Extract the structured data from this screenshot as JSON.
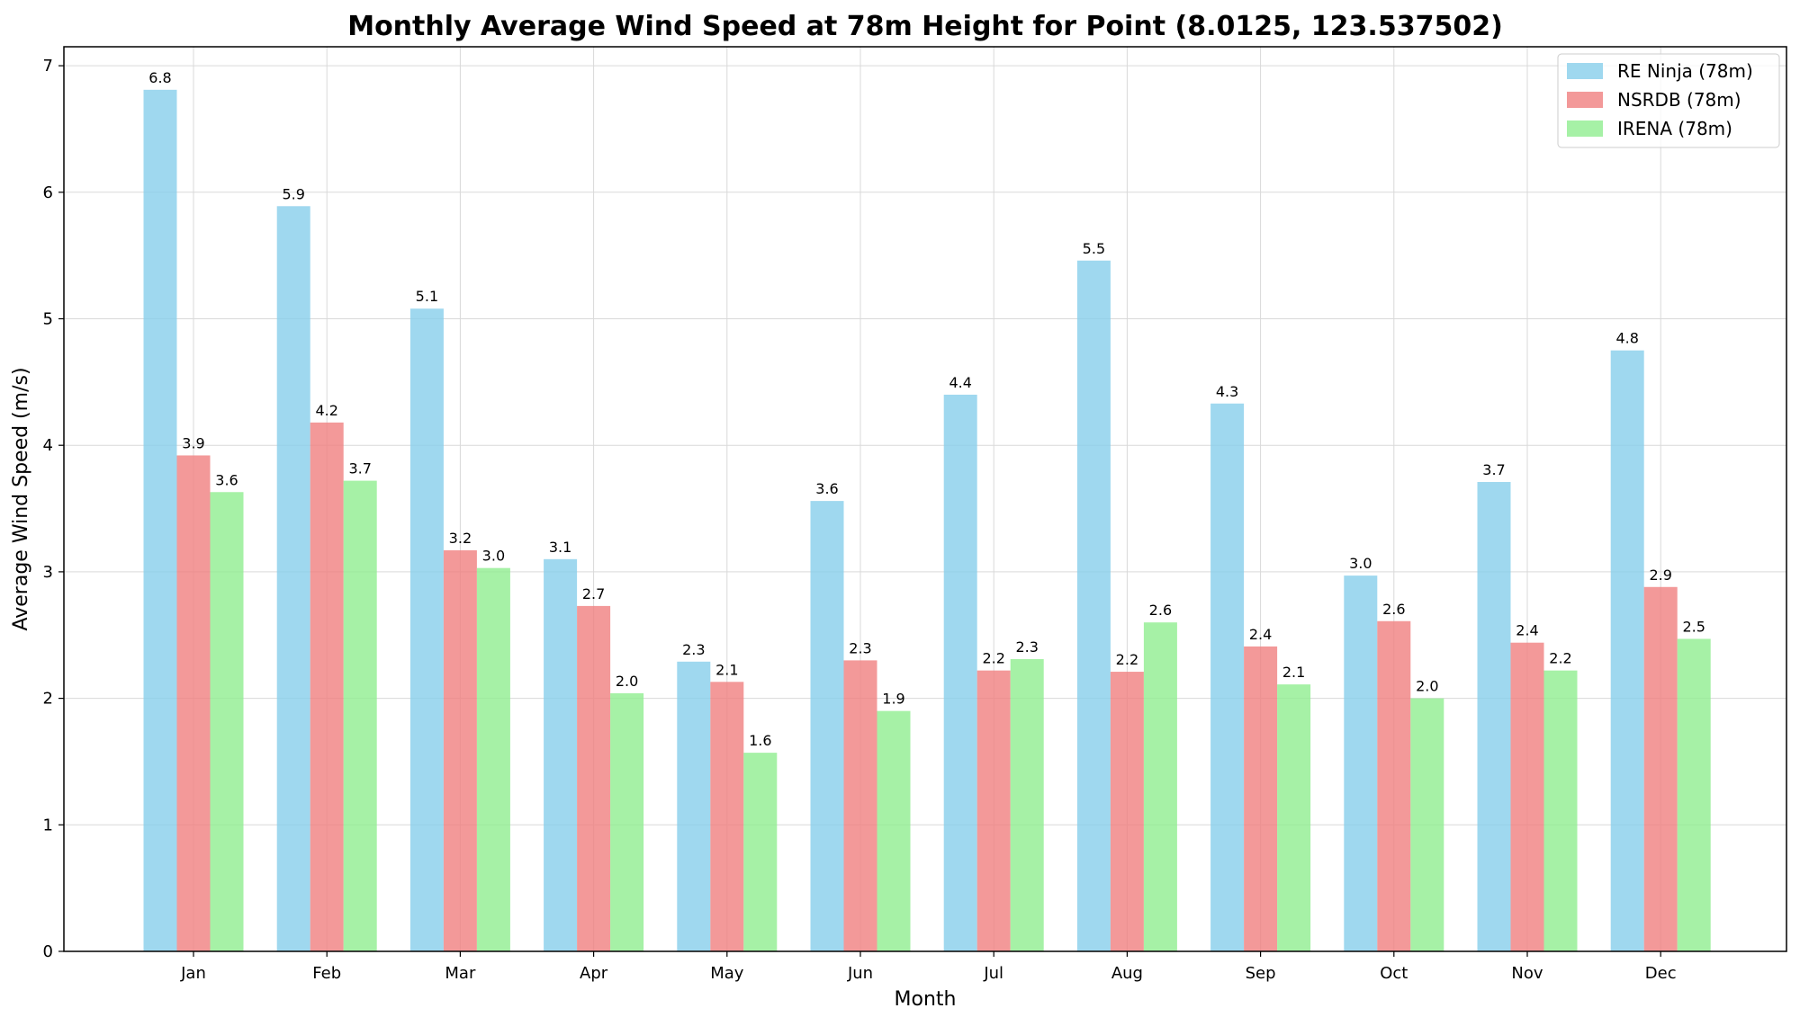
{
  "chart_data": {
    "type": "bar",
    "title": "Monthly Average Wind Speed at 78m Height for Point (8.0125, 123.537502)",
    "xlabel": "Month",
    "ylabel": "Average Wind Speed (m/s)",
    "ylim": [
      0,
      7.15
    ],
    "yticks": [
      "0",
      "1",
      "2",
      "3",
      "4",
      "5",
      "6",
      "7"
    ],
    "grid": true,
    "legend_position": "top-right",
    "categories": [
      "Jan",
      "Feb",
      "Mar",
      "Apr",
      "May",
      "Jun",
      "Jul",
      "Aug",
      "Sep",
      "Oct",
      "Nov",
      "Dec"
    ],
    "series": [
      {
        "name": "RE Ninja (78m)",
        "color": "#87ceeb",
        "values": [
          6.81,
          5.89,
          5.08,
          3.1,
          2.29,
          3.56,
          4.4,
          5.46,
          4.33,
          2.97,
          3.71,
          4.75
        ],
        "labels": [
          "6.8",
          "5.9",
          "5.1",
          "3.1",
          "2.3",
          "3.6",
          "4.4",
          "5.5",
          "4.3",
          "3.0",
          "3.7",
          "4.8"
        ]
      },
      {
        "name": "NSRDB (78m)",
        "color": "#f08080",
        "values": [
          3.92,
          4.18,
          3.17,
          2.73,
          2.13,
          2.3,
          2.22,
          2.21,
          2.41,
          2.61,
          2.44,
          2.88
        ],
        "labels": [
          "3.9",
          "4.2",
          "3.2",
          "2.7",
          "2.1",
          "2.3",
          "2.2",
          "2.2",
          "2.4",
          "2.6",
          "2.4",
          "2.9"
        ]
      },
      {
        "name": "IRENA (78m)",
        "color": "#90ee90",
        "values": [
          3.63,
          3.72,
          3.03,
          2.04,
          1.57,
          1.9,
          2.31,
          2.6,
          2.11,
          2.0,
          2.22,
          2.47
        ],
        "labels": [
          "3.6",
          "3.7",
          "3.0",
          "2.0",
          "1.6",
          "1.9",
          "2.3",
          "2.6",
          "2.1",
          "2.0",
          "2.2",
          "2.5"
        ]
      }
    ]
  }
}
